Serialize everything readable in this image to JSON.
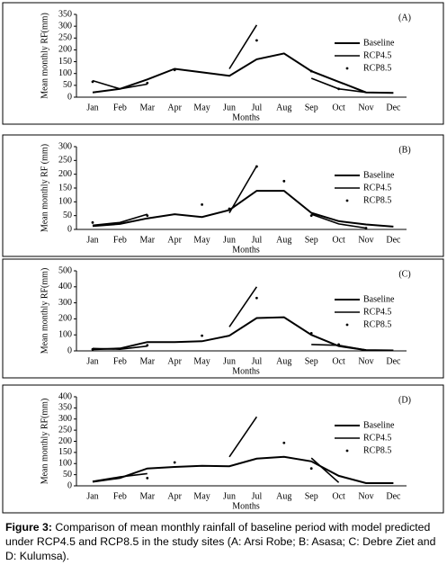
{
  "chart_data": [
    {
      "type": "line",
      "title": "(A)",
      "xlabel": "Months",
      "ylabel": "Mean monthly RF(mm)",
      "categories": [
        "Jan",
        "Feb",
        "Mar",
        "Apr",
        "May",
        "Jun",
        "Jul",
        "Aug",
        "Sep",
        "Oct",
        "Nov",
        "Dec"
      ],
      "ylim": [
        0,
        350
      ],
      "yticks": [
        0,
        50,
        100,
        150,
        200,
        250,
        300,
        350
      ],
      "series": [
        {
          "name": "Baseline",
          "color": "#000000",
          "style": "line",
          "values": [
            20,
            35,
            75,
            120,
            105,
            90,
            160,
            185,
            110,
            65,
            20,
            18
          ]
        },
        {
          "name": "RCP4.5",
          "color": "#000000",
          "style": "line",
          "values": [
            70,
            35,
            55,
            null,
            null,
            120,
            305,
            null,
            80,
            35,
            20,
            null
          ]
        },
        {
          "name": "RCP8.5",
          "color": "#000000",
          "style": "marker",
          "values": [
            65,
            null,
            60,
            115,
            null,
            null,
            240,
            null,
            110,
            35,
            null,
            null
          ]
        }
      ]
    },
    {
      "type": "line",
      "title": "(B)",
      "xlabel": "Months",
      "ylabel": "Mean monthly RF (mm)",
      "categories": [
        "Jan",
        "Feb",
        "Mar",
        "Apr",
        "May",
        "Jun",
        "Jul",
        "Aug",
        "Sep",
        "Oct",
        "Nov",
        "Dec"
      ],
      "ylim": [
        0,
        300
      ],
      "yticks": [
        0,
        50,
        100,
        150,
        200,
        250,
        300
      ],
      "series": [
        {
          "name": "Baseline",
          "color": "#000000",
          "style": "line",
          "values": [
            12,
            20,
            40,
            55,
            45,
            70,
            140,
            140,
            60,
            30,
            18,
            10
          ]
        },
        {
          "name": "RCP4.5",
          "color": "#000000",
          "style": "line",
          "values": [
            15,
            25,
            55,
            null,
            null,
            60,
            230,
            null,
            55,
            20,
            5,
            null
          ]
        },
        {
          "name": "RCP8.5",
          "color": "#000000",
          "style": "marker",
          "values": [
            25,
            null,
            50,
            null,
            90,
            75,
            228,
            175,
            50,
            null,
            5,
            null
          ]
        }
      ]
    },
    {
      "type": "line",
      "title": "(C)",
      "xlabel": "Months",
      "ylabel": "Mean monthly RF(mm)",
      "categories": [
        "Jan",
        "Feb",
        "Mar",
        "Apr",
        "May",
        "Jun",
        "Jul",
        "Aug",
        "Sep",
        "Oct",
        "Nov",
        "Dec"
      ],
      "ylim": [
        0,
        500
      ],
      "yticks": [
        0,
        100,
        200,
        300,
        400,
        500
      ],
      "series": [
        {
          "name": "Baseline",
          "color": "#000000",
          "style": "line",
          "values": [
            10,
            15,
            55,
            55,
            60,
            95,
            205,
            210,
            100,
            30,
            5,
            3
          ]
        },
        {
          "name": "RCP4.5",
          "color": "#000000",
          "style": "line",
          "values": [
            15,
            10,
            30,
            null,
            null,
            150,
            400,
            null,
            40,
            35,
            5,
            null
          ]
        },
        {
          "name": "RCP8.5",
          "color": "#000000",
          "style": "marker",
          "values": [
            10,
            null,
            35,
            null,
            95,
            null,
            330,
            null,
            110,
            40,
            null,
            null
          ]
        }
      ]
    },
    {
      "type": "line",
      "title": "(D)",
      "xlabel": "Months",
      "ylabel": "Mean monthly RF(mm)",
      "categories": [
        "Jan",
        "Feb",
        "Mar",
        "Apr",
        "May",
        "Jun",
        "Jul",
        "Aug",
        "Sep",
        "Oct",
        "Nov",
        "Dec"
      ],
      "ylim": [
        0,
        400
      ],
      "yticks": [
        0,
        50,
        100,
        150,
        200,
        250,
        300,
        350,
        400
      ],
      "series": [
        {
          "name": "Baseline",
          "color": "#000000",
          "style": "line",
          "values": [
            18,
            35,
            78,
            85,
            90,
            88,
            122,
            130,
            110,
            45,
            12,
            12
          ]
        },
        {
          "name": "RCP4.5",
          "color": "#000000",
          "style": "line",
          "values": [
            20,
            40,
            55,
            null,
            null,
            130,
            310,
            null,
            125,
            15,
            null,
            null
          ]
        },
        {
          "name": "RCP8.5",
          "color": "#000000",
          "style": "marker",
          "values": [
            null,
            null,
            35,
            105,
            null,
            null,
            null,
            193,
            78,
            null,
            null,
            null
          ]
        }
      ]
    }
  ],
  "caption": {
    "label": "Figure 3:",
    "text": "Comparison of mean monthly rainfall of baseline period with model predicted under RCP4.5 and RCP8.5 in the study sites (A: Arsi Robe; B: Asasa; C: Debre Ziet and D: Kulumsa)."
  }
}
